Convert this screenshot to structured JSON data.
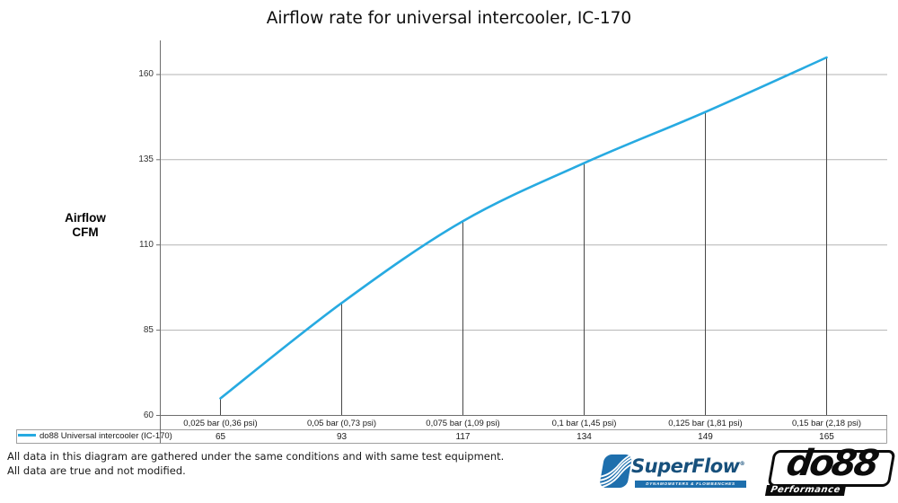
{
  "title": "Airflow rate for universal intercooler, IC-170",
  "y_axis_title": {
    "line1": "Airflow",
    "line2": "CFM"
  },
  "footer": {
    "line1": "All data in this diagram are gathered under the same conditions and with same test equipment.",
    "line2": "All data are true and not modified."
  },
  "logos": {
    "superflow": {
      "name": "SuperFlow",
      "reg_mark": "®",
      "tagline": "DYNAMOMETERS & FLOWBENCHES"
    },
    "do88": {
      "name": "do88",
      "tagline": "Performance"
    }
  },
  "colors": {
    "line": "#27aae1",
    "axis": "#6e6e6e",
    "grid": "#b3b3b3",
    "table_border": "#9f9f9f",
    "drop_line": "#474747",
    "superflow_blue": "#1e6fad",
    "superflow_text": "#17507c",
    "logo_black": "#0b0b0b"
  },
  "chart_data": {
    "type": "line",
    "title": "Airflow rate for universal intercooler, IC-170",
    "xlabel": "",
    "ylabel": "Airflow CFM",
    "categories": [
      "0,025 bar (0,36 psi)",
      "0,05 bar (0,73 psi)",
      "0,075 bar (1,09 psi)",
      "0,1 bar (1,45 psi)",
      "0,125 bar (1,81 psi)",
      "0,15 bar (2,18 psi)"
    ],
    "series": [
      {
        "name": "do88 Universal intercooler (IC-170)",
        "values": [
          65,
          93,
          117,
          134,
          149,
          165
        ]
      }
    ],
    "yticks": [
      60,
      85,
      110,
      135,
      160
    ],
    "ylim": [
      60,
      170
    ],
    "grid": "horizontal",
    "legend_position": "bottom-left-table"
  }
}
